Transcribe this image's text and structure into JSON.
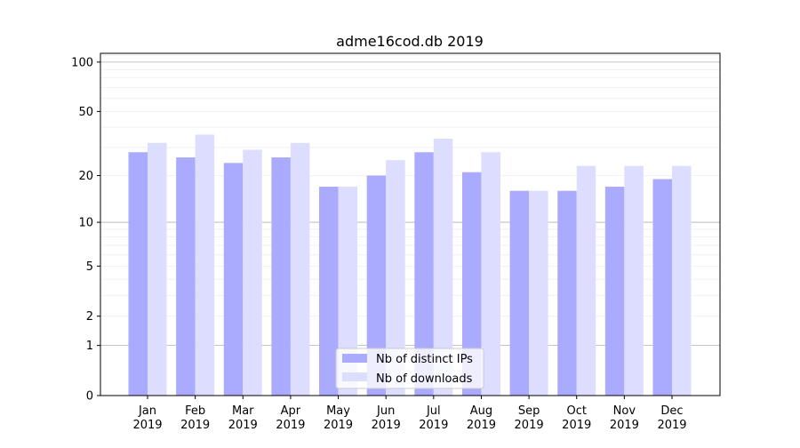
{
  "chart_data": {
    "type": "bar",
    "title": "adme16cod.db 2019",
    "xlabel": "",
    "ylabel": "",
    "y_scale": "log(1+y)",
    "ylim": [
      0,
      113
    ],
    "y_ticks": [
      0,
      1,
      2,
      5,
      10,
      20,
      50,
      100
    ],
    "grid": "horizontal major and minor",
    "legend_position": "lower center",
    "categories": [
      "Jan\n2019",
      "Feb\n2019",
      "Mar\n2019",
      "Apr\n2019",
      "May\n2019",
      "Jun\n2019",
      "Jul\n2019",
      "Aug\n2019",
      "Sep\n2019",
      "Oct\n2019",
      "Nov\n2019",
      "Dec\n2019"
    ],
    "series": [
      {
        "name": "Nb of distinct IPs",
        "color": "#aaaaff",
        "values": [
          28,
          26,
          24,
          26,
          17,
          20,
          28,
          21,
          16,
          16,
          17,
          19
        ]
      },
      {
        "name": "Nb of downloads",
        "color": "#ddddff",
        "values": [
          32,
          36,
          29,
          32,
          17,
          25,
          34,
          28,
          16,
          23,
          23,
          23
        ]
      }
    ]
  }
}
